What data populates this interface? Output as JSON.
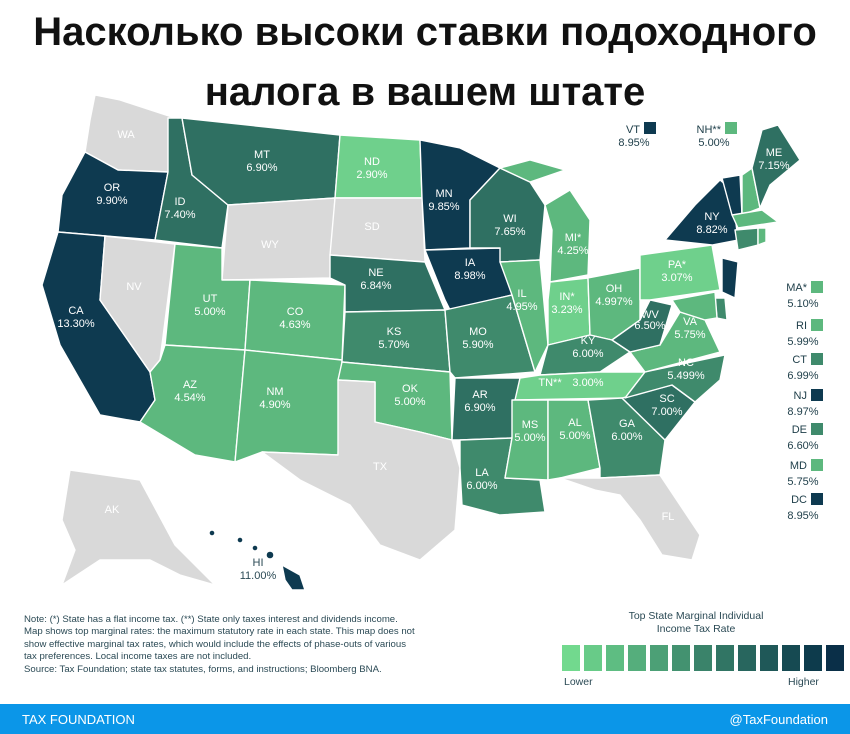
{
  "title": {
    "line1": "Насколько высоки ставки подоходного",
    "line2": "налога в вашем штате"
  },
  "colors": {
    "none": "#d9d9d9",
    "s1": "#6fd08c",
    "s2": "#5db87e",
    "s3": "#3f8a6c",
    "s4": "#2f7062",
    "s5": "#0e3a50",
    "footer": "#0b96e8"
  },
  "states": {
    "WA": {
      "name": "WA",
      "rate": ""
    },
    "OR": {
      "name": "OR",
      "rate": "9.90%"
    },
    "CA": {
      "name": "CA",
      "rate": "13.30%"
    },
    "NV": {
      "name": "NV",
      "rate": ""
    },
    "ID": {
      "name": "ID",
      "rate": "7.40%"
    },
    "MT": {
      "name": "MT",
      "rate": "6.90%"
    },
    "WY": {
      "name": "WY",
      "rate": ""
    },
    "UT": {
      "name": "UT",
      "rate": "5.00%"
    },
    "AZ": {
      "name": "AZ",
      "rate": "4.54%"
    },
    "CO": {
      "name": "CO",
      "rate": "4.63%"
    },
    "NM": {
      "name": "NM",
      "rate": "4.90%"
    },
    "ND": {
      "name": "ND",
      "rate": "2.90%"
    },
    "SD": {
      "name": "SD",
      "rate": ""
    },
    "NE": {
      "name": "NE",
      "rate": "6.84%"
    },
    "KS": {
      "name": "KS",
      "rate": "5.70%"
    },
    "OK": {
      "name": "OK",
      "rate": "5.00%"
    },
    "TX": {
      "name": "TX",
      "rate": ""
    },
    "MN": {
      "name": "MN",
      "rate": "9.85%"
    },
    "IA": {
      "name": "IA",
      "rate": "8.98%"
    },
    "MO": {
      "name": "MO",
      "rate": "5.90%"
    },
    "AR": {
      "name": "AR",
      "rate": "6.90%"
    },
    "LA": {
      "name": "LA",
      "rate": "6.00%"
    },
    "WI": {
      "name": "WI",
      "rate": "7.65%"
    },
    "IL": {
      "name": "IL",
      "rate": "4.95%"
    },
    "MI": {
      "name": "MI*",
      "rate": "4.25%"
    },
    "IN": {
      "name": "IN*",
      "rate": "3.23%"
    },
    "OH": {
      "name": "OH",
      "rate": "4.997%"
    },
    "KY": {
      "name": "KY",
      "rate": "6.00%"
    },
    "TN": {
      "name": "TN**",
      "rate": "3.00%"
    },
    "MS": {
      "name": "MS",
      "rate": "5.00%"
    },
    "AL": {
      "name": "AL",
      "rate": "5.00%"
    },
    "GA": {
      "name": "GA",
      "rate": "6.00%"
    },
    "FL": {
      "name": "FL",
      "rate": ""
    },
    "SC": {
      "name": "SC",
      "rate": "7.00%"
    },
    "NC": {
      "name": "NC",
      "rate": "5.499%"
    },
    "VA": {
      "name": "VA",
      "rate": "5.75%"
    },
    "WV": {
      "name": "WV",
      "rate": "6.50%"
    },
    "PA": {
      "name": "PA*",
      "rate": "3.07%"
    },
    "NY": {
      "name": "NY",
      "rate": "8.82%"
    },
    "ME": {
      "name": "ME",
      "rate": "7.15%"
    },
    "AK": {
      "name": "AK",
      "rate": ""
    },
    "HI": {
      "name": "HI",
      "rate": "11.00%"
    }
  },
  "top_boxes": [
    {
      "name": "VT",
      "rate": "8.95%"
    },
    {
      "name": "NH**",
      "rate": "5.00%"
    }
  ],
  "side_list": [
    {
      "name": "MA*",
      "rate": "5.10%"
    },
    {
      "name": "RI",
      "rate": "5.99%"
    },
    {
      "name": "CT",
      "rate": "6.99%"
    },
    {
      "name": "NJ",
      "rate": "8.97%"
    },
    {
      "name": "DE",
      "rate": "6.60%"
    },
    {
      "name": "MD",
      "rate": "5.75%"
    },
    {
      "name": "DC",
      "rate": "8.95%"
    }
  ],
  "note": {
    "line1": "Note: (*) State has a flat income tax. (**) State only taxes interest and dividends income.",
    "line2": "Map shows top marginal rates: the maximum statutory rate in each state. This map does not",
    "line3": "show effective marginal tax rates, which would include the effects of phase-outs of various",
    "line4": "tax preferences. Local income taxes are not included.",
    "source": "Source: Tax Foundation; state tax statutes, forms, and instructions; Bloomberg BNA."
  },
  "legend": {
    "title1": "Top State Marginal Individual",
    "title2": "Income Tax Rate",
    "low": "Lower",
    "high": "Higher",
    "ramp": [
      "#72d98e",
      "#68cb88",
      "#5ebd82",
      "#55ae7c",
      "#4ca076",
      "#439270",
      "#3a836a",
      "#317564",
      "#28665e",
      "#1f5858",
      "#164a52",
      "#0d3b4c",
      "#0a2f48"
    ]
  },
  "footer": {
    "left": "TAX FOUNDATION",
    "right": "@TaxFoundation"
  }
}
